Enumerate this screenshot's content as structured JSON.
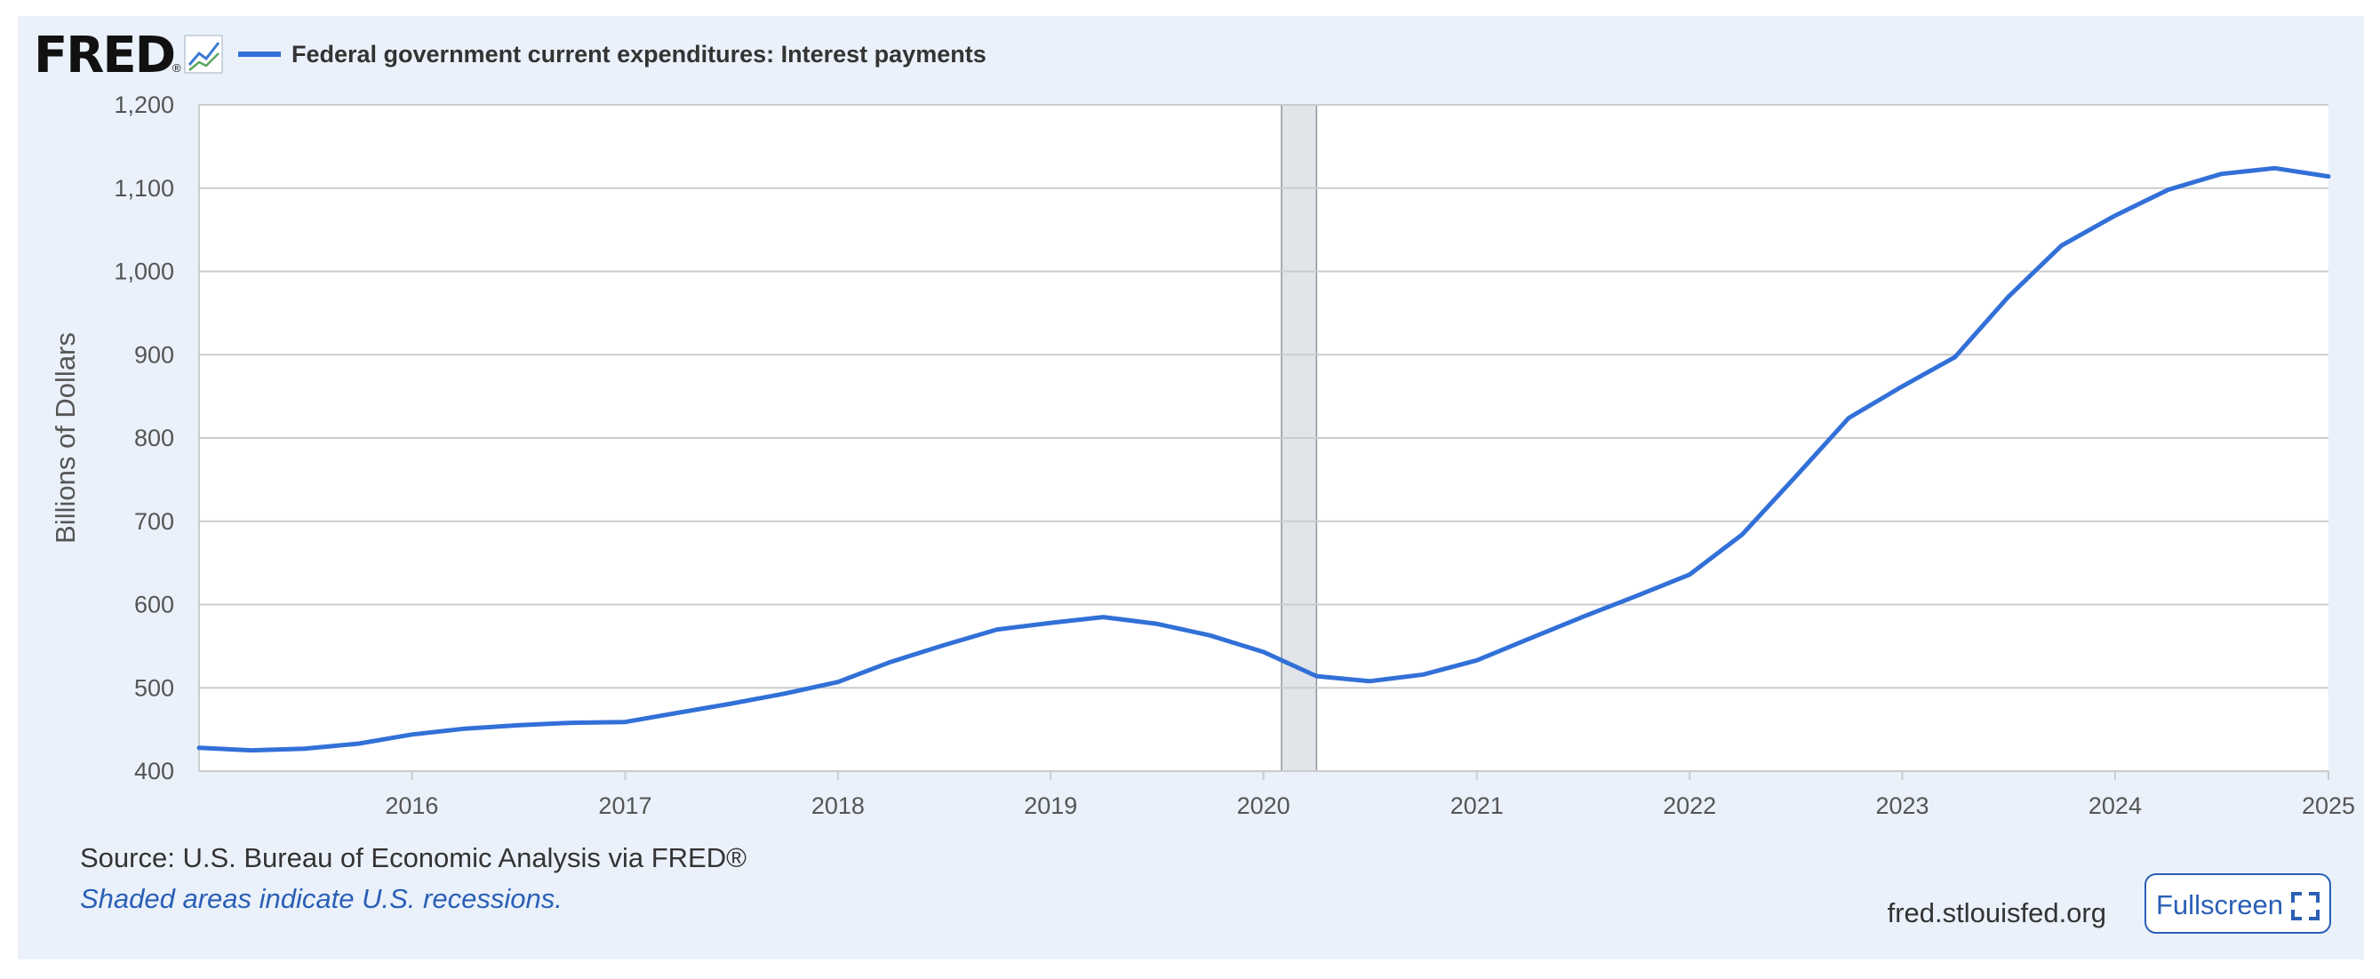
{
  "header": {
    "logo_text": "FRED",
    "logo_mark": "®",
    "logo_icon": "line-chart-icon"
  },
  "footer": {
    "source": "Source: U.S. Bureau of Economic Analysis via FRED®",
    "shaded_note": "Shaded areas indicate U.S. recessions.",
    "site": "fred.stlouisfed.org",
    "fullscreen_label": "Fullscreen",
    "fullscreen_icon": "expand-icon"
  },
  "colors": {
    "series": "#3270d8",
    "background": "#eaf1fa",
    "plot": "#ffffff",
    "grid": "#cccccc",
    "recession": "#e1e4e8",
    "link": "#2a5fb5"
  },
  "chart_data": {
    "type": "line",
    "title": "",
    "xlabel": "",
    "ylabel": "Billions of Dollars",
    "ylim": [
      400,
      1200
    ],
    "xlim": [
      "2015-01-01",
      "2025-01-01"
    ],
    "yticks": [
      "400",
      "500",
      "600",
      "700",
      "800",
      "900",
      "1,000",
      "1,100",
      "1,200"
    ],
    "xticks": [
      "2016",
      "2017",
      "2018",
      "2019",
      "2020",
      "2021",
      "2022",
      "2023",
      "2024",
      "2025"
    ],
    "grid": true,
    "legend_position": "top-left",
    "recessions": [
      {
        "start": "2020-02-01",
        "end": "2020-04-01"
      }
    ],
    "series": [
      {
        "name": "Federal government current expenditures: Interest payments",
        "x": [
          "2015-01-01",
          "2015-04-01",
          "2015-07-01",
          "2015-10-01",
          "2016-01-01",
          "2016-04-01",
          "2016-07-01",
          "2016-10-01",
          "2017-01-01",
          "2017-04-01",
          "2017-07-01",
          "2017-10-01",
          "2018-01-01",
          "2018-04-01",
          "2018-07-01",
          "2018-10-01",
          "2019-01-01",
          "2019-04-01",
          "2019-07-01",
          "2019-10-01",
          "2020-01-01",
          "2020-04-01",
          "2020-07-01",
          "2020-10-01",
          "2021-01-01",
          "2021-04-01",
          "2021-07-01",
          "2021-10-01",
          "2022-01-01",
          "2022-04-01",
          "2022-07-01",
          "2022-10-01",
          "2023-01-01",
          "2023-04-01",
          "2023-07-01",
          "2023-10-01",
          "2024-01-01",
          "2024-04-01",
          "2024-07-01",
          "2024-10-01",
          "2025-01-01"
        ],
        "values": [
          428,
          425,
          427,
          433,
          444,
          451,
          455,
          458,
          459,
          470,
          481,
          493,
          507,
          531,
          551,
          570,
          578,
          585,
          577,
          563,
          543,
          514,
          508,
          516,
          533,
          559,
          585,
          610,
          636,
          684,
          753,
          824,
          862,
          897,
          969,
          1031,
          1067,
          1098,
          1117,
          1124,
          1114
        ]
      }
    ]
  }
}
